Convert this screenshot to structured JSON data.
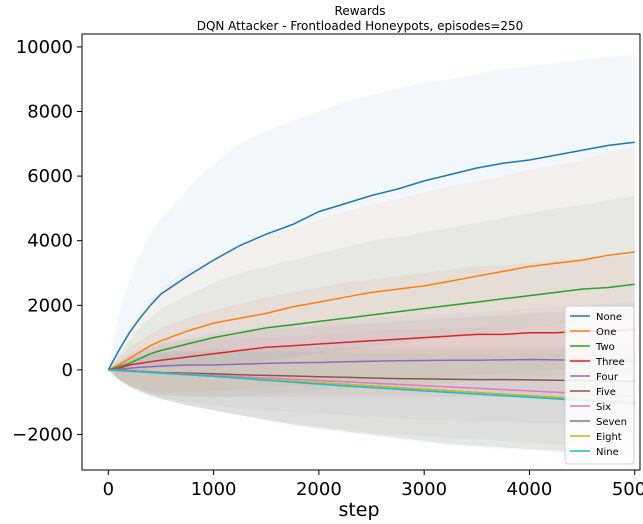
{
  "chart_data": {
    "type": "line",
    "title": "Rewards",
    "subtitle": "DQN Attacker - Frontloaded Honeypots, episodes=250",
    "xlabel": "step",
    "ylabel": "",
    "xlim": [
      -250,
      5050
    ],
    "ylim": [
      -3100,
      10400
    ],
    "x_ticks": [
      0,
      1000,
      2000,
      3000,
      4000,
      5000
    ],
    "x_tick_labels": [
      "0",
      "1000",
      "2000",
      "3000",
      "4000",
      "5000"
    ],
    "y_ticks": [
      -2000,
      0,
      2000,
      4000,
      6000,
      8000,
      10000
    ],
    "y_tick_labels": [
      "−2000",
      "0",
      "2000",
      "4000",
      "6000",
      "8000",
      "10000"
    ],
    "grid": false,
    "legend_position": "lower-right",
    "x": [
      0,
      100,
      200,
      300,
      400,
      500,
      750,
      1000,
      1250,
      1500,
      1750,
      2000,
      2250,
      2500,
      2750,
      3000,
      3250,
      3500,
      3750,
      4000,
      4250,
      4500,
      4750,
      5000
    ],
    "series": [
      {
        "name": "None",
        "color": "#1f77b4",
        "values": [
          0,
          600,
          1150,
          1600,
          2000,
          2350,
          2900,
          3400,
          3850,
          4200,
          4500,
          4900,
          5150,
          5400,
          5600,
          5850,
          6050,
          6250,
          6400,
          6500,
          6650,
          6800,
          6950,
          7050
        ],
        "band_upper": [
          0,
          1700,
          2800,
          3600,
          4200,
          4700,
          5600,
          6400,
          7000,
          7400,
          7700,
          8000,
          8300,
          8500,
          8700,
          8900,
          9000,
          9150,
          9300,
          9400,
          9500,
          9600,
          9700,
          9750
        ],
        "band_lower": [
          0,
          -100,
          -100,
          0,
          50,
          50,
          100,
          150,
          200,
          300,
          400,
          500,
          600,
          700,
          800,
          900,
          1000,
          1100,
          1200,
          1300,
          1400,
          1500,
          1600,
          1700
        ]
      },
      {
        "name": "One",
        "color": "#ff7f0e",
        "values": [
          0,
          150,
          350,
          550,
          750,
          900,
          1200,
          1450,
          1600,
          1750,
          1950,
          2100,
          2250,
          2400,
          2500,
          2600,
          2750,
          2900,
          3050,
          3200,
          3300,
          3400,
          3550,
          3650
        ],
        "band_upper": [
          0,
          700,
          1300,
          1800,
          2200,
          2550,
          3100,
          3500,
          3850,
          4150,
          4400,
          4650,
          4900,
          5100,
          5300,
          5500,
          5700,
          5850,
          6000,
          6200,
          6350,
          6500,
          6750,
          6900
        ],
        "band_lower": [
          0,
          -300,
          -500,
          -600,
          -650,
          -700,
          -700,
          -650,
          -600,
          -550,
          -500,
          -450,
          -400,
          -350,
          -300,
          -250,
          -200,
          -150,
          -100,
          -50,
          0,
          50,
          100,
          150
        ]
      },
      {
        "name": "Two",
        "color": "#2ca02c",
        "values": [
          0,
          100,
          200,
          350,
          500,
          600,
          800,
          1000,
          1150,
          1300,
          1400,
          1500,
          1600,
          1700,
          1800,
          1900,
          2000,
          2100,
          2200,
          2300,
          2400,
          2500,
          2550,
          2650
        ],
        "band_upper": [
          0,
          500,
          900,
          1300,
          1600,
          1900,
          2300,
          2700,
          3000,
          3200,
          3400,
          3600,
          3800,
          4000,
          4100,
          4250,
          4400,
          4550,
          4700,
          4850,
          5000,
          5100,
          5250,
          5400
        ],
        "band_lower": [
          0,
          -300,
          -500,
          -650,
          -750,
          -800,
          -850,
          -850,
          -800,
          -750,
          -700,
          -650,
          -600,
          -550,
          -500,
          -450,
          -400,
          -350,
          -300,
          -250,
          -200,
          -150,
          -100,
          -100
        ]
      },
      {
        "name": "Three",
        "color": "#d62728",
        "values": [
          0,
          50,
          150,
          200,
          250,
          300,
          400,
          500,
          600,
          700,
          750,
          800,
          850,
          900,
          950,
          1000,
          1050,
          1100,
          1100,
          1150,
          1150,
          1200,
          1200,
          1250
        ],
        "band_upper": [
          0,
          400,
          700,
          900,
          1100,
          1300,
          1600,
          1850,
          2050,
          2250,
          2400,
          2550,
          2700,
          2800,
          2900,
          3000,
          3100,
          3200,
          3250,
          3300,
          3400,
          3450,
          3500,
          3550
        ],
        "band_lower": [
          0,
          -300,
          -500,
          -600,
          -700,
          -750,
          -800,
          -850,
          -850,
          -850,
          -850,
          -850,
          -850,
          -850,
          -850,
          -850,
          -850,
          -850,
          -850,
          -850,
          -900,
          -900,
          -900,
          -900
        ]
      },
      {
        "name": "Four",
        "color": "#9467bd",
        "values": [
          0,
          20,
          50,
          80,
          100,
          120,
          150,
          150,
          180,
          200,
          220,
          230,
          250,
          270,
          280,
          290,
          300,
          300,
          310,
          320,
          310,
          300,
          280,
          260
        ],
        "band_upper": [
          0,
          300,
          500,
          650,
          750,
          850,
          1000,
          1150,
          1250,
          1350,
          1450,
          1500,
          1550,
          1600,
          1650,
          1700,
          1750,
          1800,
          1850,
          1900,
          1950,
          2000,
          2050,
          2100
        ],
        "band_lower": [
          0,
          -300,
          -500,
          -650,
          -750,
          -850,
          -1000,
          -1100,
          -1200,
          -1250,
          -1300,
          -1350,
          -1400,
          -1450,
          -1500,
          -1550,
          -1550,
          -1600,
          -1600,
          -1650,
          -1650,
          -1700,
          -1700,
          -1750
        ]
      },
      {
        "name": "Five",
        "color": "#8c564b",
        "values": [
          0,
          -10,
          -20,
          -40,
          -60,
          -80,
          -100,
          -120,
          -150,
          -170,
          -190,
          -210,
          -230,
          -250,
          -270,
          -280,
          -290,
          -300,
          -300,
          -310,
          -320,
          -330,
          -340,
          -350
        ],
        "band_upper": [
          0,
          250,
          450,
          600,
          700,
          800,
          950,
          1050,
          1150,
          1250,
          1300,
          1350,
          1400,
          1450,
          1500,
          1550,
          1600,
          1650,
          1700,
          1750,
          1800,
          1800,
          1850,
          1900
        ],
        "band_lower": [
          0,
          -300,
          -550,
          -700,
          -800,
          -900,
          -1100,
          -1250,
          -1400,
          -1550,
          -1650,
          -1750,
          -1850,
          -1950,
          -2000,
          -2050,
          -2100,
          -2150,
          -2200,
          -2250,
          -2300,
          -2350,
          -2400,
          -2450
        ]
      },
      {
        "name": "Six",
        "color": "#e377c2",
        "values": [
          0,
          -10,
          -30,
          -50,
          -70,
          -90,
          -130,
          -170,
          -210,
          -250,
          -290,
          -330,
          -370,
          -410,
          -450,
          -490,
          -530,
          -570,
          -610,
          -650,
          -690,
          -730,
          -770,
          -820
        ],
        "band_upper": [
          0,
          250,
          400,
          500,
          600,
          700,
          800,
          900,
          950,
          1000,
          1050,
          1100,
          1150,
          1200,
          1250,
          1250,
          1300,
          1300,
          1350,
          1350,
          1400,
          1400,
          1400,
          1400
        ],
        "band_lower": [
          0,
          -300,
          -500,
          -650,
          -800,
          -900,
          -1100,
          -1250,
          -1400,
          -1550,
          -1700,
          -1800,
          -1900,
          -2000,
          -2100,
          -2200,
          -2300,
          -2350,
          -2400,
          -2450,
          -2500,
          -2550,
          -2600,
          -2650
        ]
      },
      {
        "name": "Seven",
        "color": "#7f7f7f",
        "values": [
          0,
          -20,
          -40,
          -60,
          -80,
          -100,
          -150,
          -200,
          -250,
          -300,
          -350,
          -400,
          -450,
          -500,
          -550,
          -600,
          -650,
          -700,
          -750,
          -800,
          -850,
          -900,
          -950,
          -1000
        ],
        "band_upper": [
          0,
          200,
          350,
          450,
          500,
          550,
          600,
          650,
          650,
          700,
          700,
          700,
          700,
          700,
          700,
          700,
          700,
          700,
          700,
          700,
          700,
          700,
          700,
          700
        ],
        "band_lower": [
          0,
          -300,
          -500,
          -650,
          -800,
          -900,
          -1100,
          -1250,
          -1400,
          -1550,
          -1700,
          -1800,
          -1900,
          -2000,
          -2100,
          -2200,
          -2300,
          -2350,
          -2400,
          -2450,
          -2500,
          -2550,
          -2600,
          -2650
        ]
      },
      {
        "name": "Eight",
        "color": "#bcbd22",
        "values": [
          0,
          -20,
          -40,
          -60,
          -80,
          -100,
          -150,
          -200,
          -250,
          -300,
          -350,
          -400,
          -450,
          -500,
          -550,
          -600,
          -650,
          -700,
          -750,
          -800,
          -850,
          -900,
          -950,
          -1000
        ],
        "band_upper": [
          0,
          200,
          300,
          400,
          450,
          500,
          550,
          600,
          600,
          600,
          600,
          600,
          600,
          600,
          600,
          600,
          600,
          600,
          600,
          600,
          600,
          600,
          600,
          600
        ],
        "band_lower": [
          0,
          -300,
          -500,
          -650,
          -800,
          -900,
          -1100,
          -1250,
          -1400,
          -1550,
          -1700,
          -1800,
          -1900,
          -2000,
          -2100,
          -2200,
          -2300,
          -2350,
          -2400,
          -2450,
          -2500,
          -2550,
          -2600,
          -2650
        ]
      },
      {
        "name": "Nine",
        "color": "#17becf",
        "values": [
          0,
          -20,
          -40,
          -60,
          -80,
          -100,
          -150,
          -200,
          -260,
          -320,
          -380,
          -440,
          -500,
          -550,
          -600,
          -650,
          -700,
          -750,
          -800,
          -850,
          -900,
          -950,
          -1000,
          -1050
        ],
        "band_upper": [
          0,
          200,
          300,
          400,
          450,
          500,
          550,
          550,
          550,
          550,
          550,
          550,
          550,
          500,
          500,
          500,
          500,
          500,
          500,
          500,
          500,
          500,
          500,
          500
        ],
        "band_lower": [
          0,
          -300,
          -500,
          -650,
          -800,
          -900,
          -1100,
          -1250,
          -1400,
          -1550,
          -1700,
          -1850,
          -1950,
          -2050,
          -2150,
          -2250,
          -2350,
          -2400,
          -2450,
          -2500,
          -2550,
          -2600,
          -2650,
          -2700
        ]
      }
    ]
  }
}
